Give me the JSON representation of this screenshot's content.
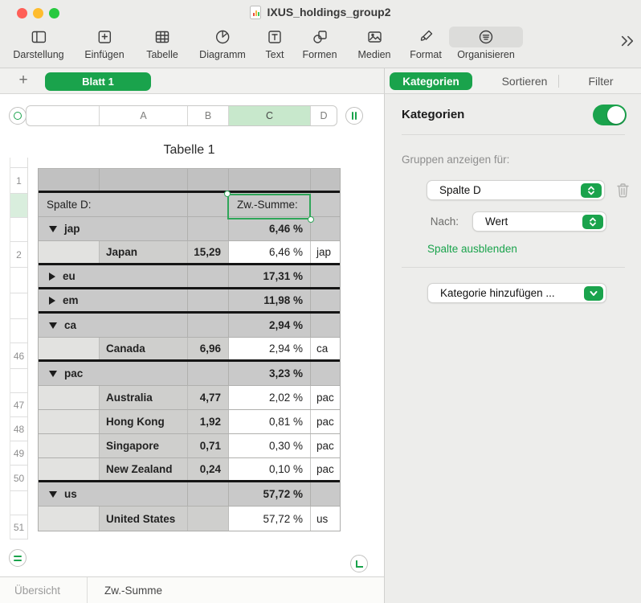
{
  "window": {
    "title": "IXUS_holdings_group2"
  },
  "toolbar": {
    "items": [
      {
        "label": "Darstellung",
        "icon": "sidebar-icon"
      },
      {
        "label": "Einfügen",
        "icon": "insert-icon"
      },
      {
        "label": "Tabelle",
        "icon": "table-icon"
      },
      {
        "label": "Diagramm",
        "icon": "pie-chart-icon"
      },
      {
        "label": "Text",
        "icon": "text-box-icon"
      },
      {
        "label": "Formen",
        "icon": "shapes-icon"
      },
      {
        "label": "Medien",
        "icon": "media-icon"
      },
      {
        "label": "Format",
        "icon": "paintbrush-icon"
      },
      {
        "label": "Organisieren",
        "icon": "organize-icon",
        "active": true
      }
    ]
  },
  "sheetbar": {
    "add_label": "+",
    "sheet_name": "Blatt 1"
  },
  "panel_tabs": [
    {
      "label": "Kategorien",
      "active": true
    },
    {
      "label": "Sortieren",
      "active": false
    },
    {
      "label": "Filter",
      "active": false
    }
  ],
  "panel": {
    "kategorien_label": "Kategorien",
    "toggle_on": true,
    "gruppen_label": "Gruppen anzeigen für:",
    "column_select_value": "Spalte D",
    "nach_label": "Nach:",
    "nach_select_value": "Wert",
    "hide_column_link": "Spalte ausblenden",
    "add_category_value": "Kategorie hinzufügen ..."
  },
  "canvas": {
    "table_title": "Tabelle 1",
    "column_letters": [
      "A",
      "B",
      "C",
      "D"
    ],
    "selected_column": "C"
  },
  "table": {
    "rows": [
      {
        "type": "header1",
        "num": "1",
        "thick": true
      },
      {
        "type": "label",
        "num": "",
        "num_selected": true,
        "a": "Spalte D:",
        "b": "",
        "c": "Zw.-Summe:",
        "d": "",
        "c_selected": true
      },
      {
        "type": "category",
        "num": "",
        "arrow": "down",
        "name": "jap",
        "pct": "6,46 %"
      },
      {
        "type": "data",
        "num": "2",
        "name": "Japan",
        "b": "15,29",
        "pct": "6,46 %",
        "d": "jap",
        "thick": true
      },
      {
        "type": "category",
        "num": "",
        "arrow": "right",
        "name": "eu",
        "pct": "17,31 %",
        "thick": true
      },
      {
        "type": "category",
        "num": "",
        "arrow": "right",
        "name": "em",
        "pct": "11,98 %",
        "thick": true
      },
      {
        "type": "category",
        "num": "",
        "arrow": "down",
        "name": "ca",
        "pct": "2,94 %"
      },
      {
        "type": "data",
        "num": "46",
        "name": "Canada",
        "b": "6,96",
        "pct": "2,94 %",
        "d": "ca",
        "thick": true
      },
      {
        "type": "category",
        "num": "",
        "arrow": "down",
        "name": "pac",
        "pct": "3,23 %"
      },
      {
        "type": "data",
        "num": "47",
        "name": "Australia",
        "b": "4,77",
        "pct": "2,02 %",
        "d": "pac"
      },
      {
        "type": "data",
        "num": "48",
        "name": "Hong Kong",
        "b": "1,92",
        "pct": "0,81 %",
        "d": "pac"
      },
      {
        "type": "data",
        "num": "49",
        "name": "Singapore",
        "b": "0,71",
        "pct": "0,30 %",
        "d": "pac"
      },
      {
        "type": "data",
        "num": "50",
        "name": "New Zealand",
        "b": "0,24",
        "pct": "0,10 %",
        "d": "pac",
        "thick": true
      },
      {
        "type": "category",
        "num": "",
        "arrow": "down",
        "name": "us",
        "pct": "57,72 %"
      },
      {
        "type": "data",
        "num": "51",
        "name": "United States",
        "b": "",
        "pct": "57,72 %",
        "d": "us"
      }
    ]
  },
  "bottombar": {
    "items": [
      "Übersicht",
      "Zw.-Summe"
    ],
    "active": "Zw.-Summe"
  },
  "colors": {
    "accent_green": "#1aa34c",
    "selection_green": "#2fa659",
    "column_highlight": "#c8e8cc",
    "row_highlight": "#d9eedd",
    "category_row_gray": "#c9c9c9",
    "header_row_gray": "#c1c1c1",
    "data_cell_gray": "#cfcfcd",
    "indent_cell_gray": "#e2e2e0",
    "traffic_red": "#ff5f57",
    "traffic_yellow": "#febc2e",
    "traffic_green": "#27c93f"
  }
}
